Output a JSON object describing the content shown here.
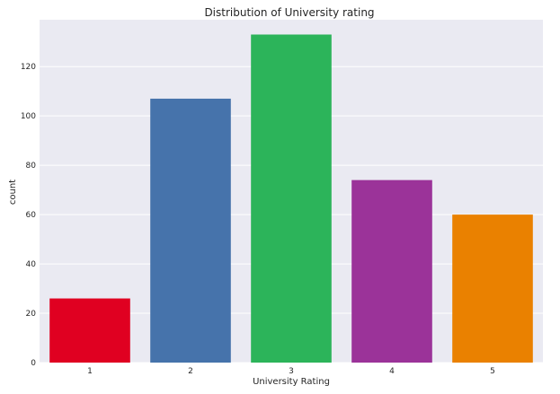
{
  "chart_data": {
    "type": "bar",
    "title": "Distribution of University rating",
    "xlabel": "University Rating",
    "ylabel": "count",
    "categories": [
      "1",
      "2",
      "3",
      "4",
      "5"
    ],
    "values": [
      26,
      107,
      133,
      74,
      60
    ],
    "colors": [
      "#e00021",
      "#4673ab",
      "#2cb45a",
      "#9b3399",
      "#ea8100"
    ],
    "ylim": [
      0,
      139
    ],
    "yticks": [
      0,
      20,
      40,
      60,
      80,
      100,
      120
    ],
    "grid": true,
    "background": "#eaeaf2"
  }
}
